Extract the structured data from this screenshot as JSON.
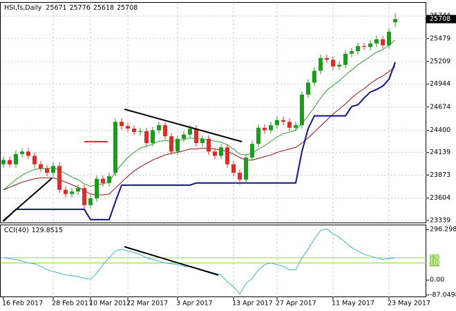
{
  "chart_data": [
    {
      "type": "candlestick",
      "title": "HSI,fs,Daily",
      "categories": [
        "16 Feb 2017",
        null,
        null,
        null,
        null,
        null,
        null,
        null,
        "28 Feb 2017",
        null,
        null,
        null,
        null,
        null,
        "10 Mar 2017",
        null,
        null,
        null,
        null,
        null,
        "22 Mar 2017",
        null,
        null,
        null,
        null,
        null,
        null,
        null,
        "3 Apr 2017",
        null,
        null,
        null,
        null,
        null,
        null,
        null,
        null,
        "13 Apr 2017",
        null,
        null,
        null,
        null,
        null,
        null,
        "27 Apr 2017",
        null,
        null,
        null,
        null,
        null,
        null,
        null,
        null,
        "11 May 2017",
        null,
        null,
        null,
        null,
        null,
        null,
        null,
        null,
        "23 May 2017",
        null
      ],
      "open": [
        24000,
        24050,
        24000,
        24120,
        24150,
        24100,
        24000,
        23950,
        23900,
        23980,
        23700,
        23650,
        23680,
        23720,
        23520,
        23600,
        23830,
        23780,
        23900,
        24500,
        24450,
        24420,
        24380,
        24390,
        24250,
        24400,
        24460,
        24330,
        24150,
        24300,
        24350,
        24420,
        24250,
        24300,
        24150,
        24100,
        24200,
        24000,
        23900,
        23820,
        24080,
        24240,
        24430,
        24400,
        24460,
        24520,
        24500,
        24430,
        24460,
        24820,
        24960,
        25100,
        25250,
        25230,
        25150,
        25170,
        25300,
        25330,
        25390,
        25380,
        25420,
        25470,
        25400,
        25671
      ],
      "high": [
        24090,
        24090,
        24160,
        24190,
        24190,
        24140,
        24040,
        23990,
        24020,
        24020,
        23740,
        23720,
        23760,
        23760,
        23640,
        23870,
        23870,
        23900,
        24540,
        24540,
        24490,
        24460,
        24430,
        24430,
        24440,
        24500,
        24500,
        24370,
        24340,
        24390,
        24460,
        24460,
        24340,
        24340,
        24190,
        24240,
        24240,
        24040,
        23940,
        24120,
        24280,
        24470,
        24470,
        24500,
        24560,
        24560,
        24540,
        24500,
        24860,
        25000,
        25140,
        25290,
        25290,
        25270,
        25210,
        25340,
        25370,
        25430,
        25430,
        25460,
        25510,
        25510,
        25600,
        25776
      ],
      "low": [
        23960,
        23960,
        23960,
        24080,
        24060,
        23960,
        23910,
        23860,
        23860,
        23660,
        23610,
        23610,
        23640,
        23480,
        23480,
        23560,
        23740,
        23740,
        23860,
        24410,
        24380,
        24340,
        24340,
        24210,
        24210,
        24360,
        24290,
        24110,
        24110,
        24260,
        24310,
        24210,
        24210,
        24110,
        24060,
        24060,
        23960,
        23860,
        23760,
        23780,
        24040,
        24200,
        24360,
        24360,
        24420,
        24460,
        24390,
        24390,
        24420,
        24780,
        24920,
        25060,
        25190,
        25110,
        25110,
        25130,
        25260,
        25290,
        25340,
        25340,
        25380,
        25360,
        25360,
        25618
      ],
      "close": [
        24050,
        24000,
        24120,
        24150,
        24100,
        24000,
        23950,
        23900,
        23980,
        23700,
        23650,
        23680,
        23720,
        23520,
        23600,
        23830,
        23780,
        23860,
        24500,
        24450,
        24420,
        24380,
        24390,
        24250,
        24400,
        24460,
        24330,
        24150,
        24300,
        24350,
        24420,
        24250,
        24300,
        24150,
        24100,
        24200,
        24000,
        23900,
        23820,
        24080,
        24240,
        24430,
        24400,
        24460,
        24520,
        24500,
        24430,
        24460,
        24820,
        24960,
        25100,
        25250,
        25230,
        25150,
        25170,
        25300,
        25330,
        25390,
        25380,
        25420,
        25470,
        25400,
        25560,
        25708
      ],
      "up_color": "#1f9a1f",
      "down_color": "#e02b2b",
      "lines": [
        {
          "color": "#2e9e2e",
          "values": [
            23700,
            23760,
            23820,
            23870,
            23910,
            23940,
            23950,
            23950,
            23960,
            23930,
            23890,
            23850,
            23820,
            23770,
            23740,
            23760,
            23770,
            23790,
            23910,
            24000,
            24080,
            24140,
            24190,
            24210,
            24240,
            24270,
            24280,
            24270,
            24280,
            24290,
            24310,
            24300,
            24300,
            24290,
            24270,
            24260,
            24230,
            24180,
            24120,
            24110,
            24130,
            24180,
            24220,
            24270,
            24320,
            24360,
            24380,
            24400,
            24480,
            24570,
            24670,
            24780,
            24870,
            24930,
            24980,
            25050,
            25110,
            25170,
            25220,
            25270,
            25320,
            25350,
            25400,
            25460
          ]
        },
        {
          "color": "#8b1010",
          "values": [
            23700,
            23730,
            23760,
            23790,
            23810,
            23830,
            23840,
            23840,
            23840,
            23820,
            23790,
            23760,
            23730,
            23690,
            23650,
            23640,
            23640,
            23650,
            23720,
            23790,
            23860,
            23920,
            23970,
            24010,
            24050,
            24080,
            24110,
            24130,
            24140,
            24160,
            24180,
            24180,
            24190,
            24190,
            24180,
            24170,
            24150,
            24120,
            24080,
            24050,
            24050,
            24070,
            24090,
            24110,
            24140,
            24160,
            24180,
            24200,
            24250,
            24310,
            24380,
            24450,
            24520,
            24590,
            24650,
            24710,
            24780,
            24840,
            24890,
            24950,
            25000,
            25040,
            25090,
            25150
          ]
        },
        {
          "color": "#121282",
          "values": [
            23330,
            23400,
            23470,
            23470,
            23470,
            23470,
            23470,
            23470,
            23470,
            23470,
            23470,
            23470,
            23470,
            23470,
            23350,
            23350,
            23350,
            23350,
            23560,
            23755,
            23755,
            23755,
            23755,
            23755,
            23755,
            23755,
            23755,
            23755,
            23755,
            23755,
            23755,
            23780,
            23780,
            23780,
            23780,
            23780,
            23780,
            23780,
            23780,
            23780,
            23780,
            23780,
            23780,
            23780,
            23780,
            23780,
            23780,
            23780,
            24150,
            24420,
            24570,
            24570,
            24570,
            24570,
            24570,
            24570,
            24680,
            24700,
            24780,
            24850,
            24880,
            24920,
            25000,
            25200
          ]
        }
      ],
      "ylim": [
        23315,
        25900
      ],
      "yticks": [
        23339,
        23604,
        23873,
        24139,
        24400,
        24674,
        24944,
        25209,
        25479,
        25744
      ],
      "grid": true
    },
    {
      "type": "line",
      "title": "CCI(40)",
      "values": [
        130,
        125,
        120,
        110,
        100,
        95,
        80,
        60,
        50,
        40,
        30,
        25,
        20,
        10,
        5,
        40,
        90,
        130,
        170,
        180,
        170,
        160,
        150,
        130,
        120,
        110,
        100,
        95,
        90,
        80,
        80,
        70,
        60,
        50,
        40,
        30,
        -10,
        -40,
        -80,
        -20,
        10,
        60,
        90,
        100,
        90,
        80,
        60,
        60,
        130,
        180,
        240,
        290,
        300,
        270,
        250,
        220,
        190,
        170,
        150,
        140,
        130,
        120,
        125,
        129.8515
      ],
      "color": "#3cb4c8",
      "ylim": [
        -100,
        320
      ],
      "yticks": [
        296.2986,
        {
          "value": 0,
          "label": "0.00"
        },
        -87.0498
      ],
      "levels": [
        130,
        100
      ],
      "level_color": "#8fd14f"
    }
  ]
}
